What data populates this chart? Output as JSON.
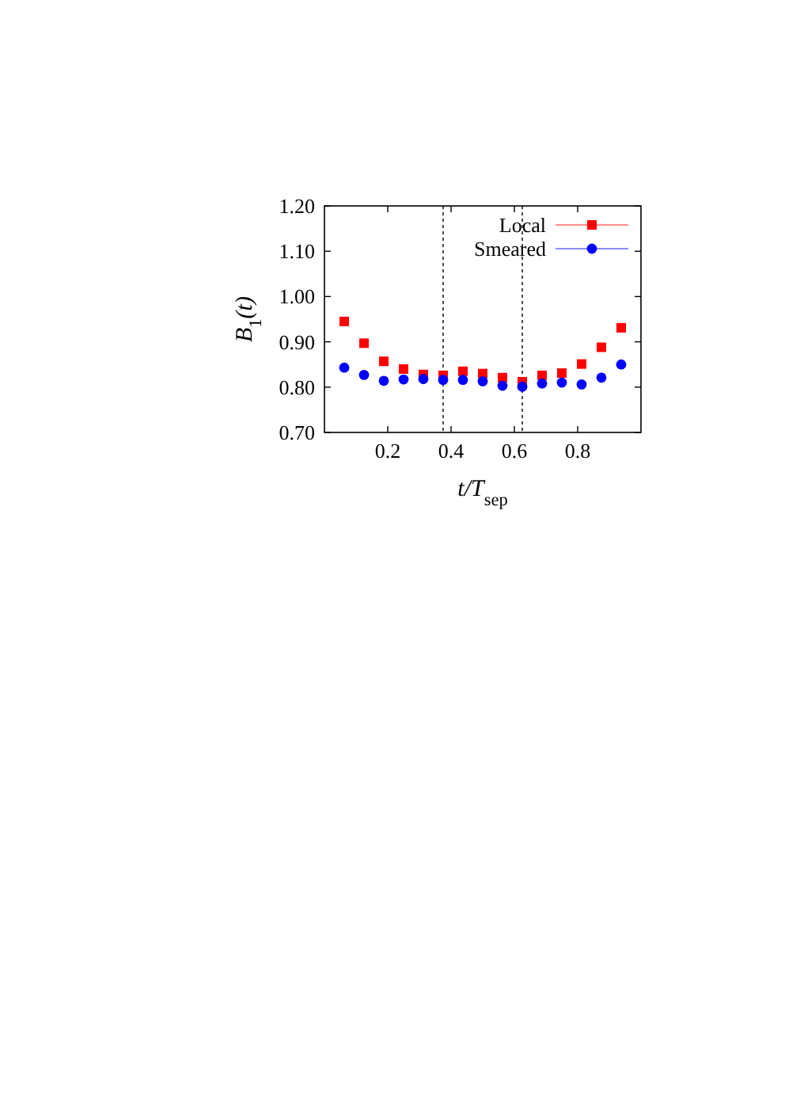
{
  "chart_data": {
    "type": "scatter",
    "xlabel": "t/T$_{sep}$",
    "ylabel": "B$_{1}$(t)",
    "x": [
      0.0625,
      0.125,
      0.1875,
      0.25,
      0.3125,
      0.375,
      0.4375,
      0.5,
      0.5625,
      0.625,
      0.6875,
      0.75,
      0.8125,
      0.875,
      0.9375
    ],
    "series": [
      {
        "name": "Local",
        "color": "#ff0000",
        "marker": "square",
        "values": [
          0.945,
          0.897,
          0.857,
          0.84,
          0.828,
          0.826,
          0.835,
          0.83,
          0.821,
          0.812,
          0.826,
          0.831,
          0.851,
          0.888,
          0.931
        ],
        "errors": [
          0.006,
          0.007,
          0.006,
          0.005,
          0.007,
          0.007,
          0.008,
          0.008,
          0.007,
          0.007,
          0.006,
          0.005,
          0.004,
          0.003,
          0.003
        ]
      },
      {
        "name": "Smeared",
        "color": "#0000ff",
        "marker": "circle",
        "values": [
          0.843,
          0.827,
          0.814,
          0.817,
          0.818,
          0.816,
          0.816,
          0.813,
          0.803,
          0.801,
          0.808,
          0.81,
          0.806,
          0.821,
          0.85
        ],
        "errors": [
          0.006,
          0.006,
          0.007,
          0.006,
          0.006,
          0.008,
          0.007,
          0.007,
          0.007,
          0.007,
          0.006,
          0.005,
          0.003,
          0.003,
          0.003
        ]
      }
    ],
    "xlim": [
      0,
      1
    ],
    "ylim": [
      0.7,
      1.2
    ],
    "xticks": [
      0.2,
      0.4,
      0.6,
      0.8
    ],
    "yticks": [
      {
        "value": 0.7,
        "label": "0.70"
      },
      {
        "value": 0.8,
        "label": "0.80"
      },
      {
        "value": 0.9,
        "label": "0.90"
      },
      {
        "value": 1.0,
        "label": "1.00"
      },
      {
        "value": 1.1,
        "label": "1.10"
      },
      {
        "value": 1.2,
        "label": "1.20"
      }
    ],
    "ref_lines": [
      {
        "axis": "x",
        "value": 0.375,
        "line_style": "dotted",
        "color": "#000000"
      },
      {
        "axis": "x",
        "value": 0.625,
        "line_style": "dotted",
        "color": "#000000"
      }
    ],
    "legend": "top right",
    "grid": false
  }
}
